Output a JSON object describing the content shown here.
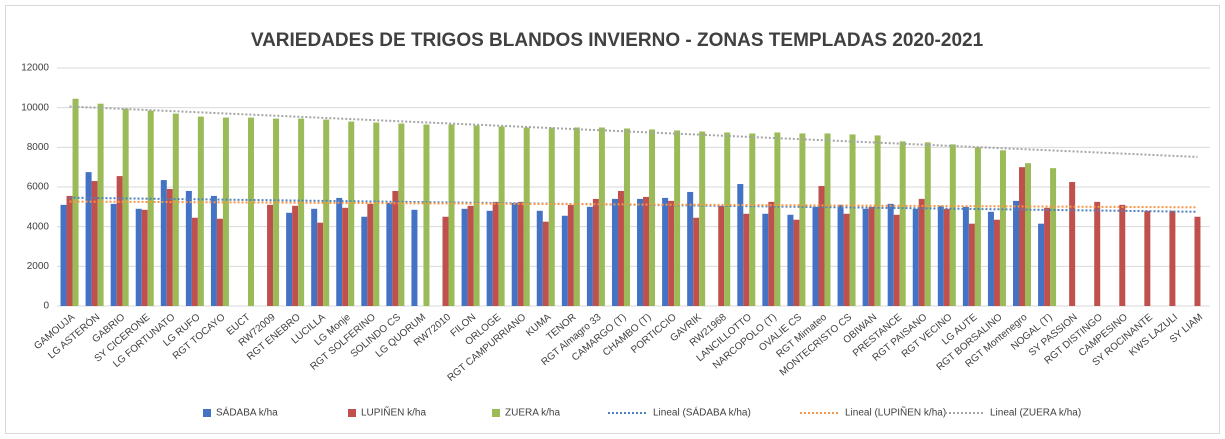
{
  "chart_data": {
    "type": "bar",
    "title": "VARIEDADES DE TRIGOS BLANDOS INVIERNO - ZONAS TEMPLADAS 2020-2021",
    "categories": [
      "GAMOUJA",
      "LG ASTERÓN",
      "GABRIO",
      "SY CICERONE",
      "LG FORTUNATO",
      "LG RUFO",
      "RGT TOCAYO",
      "EUCT",
      "RW72009",
      "RGT ENEBRO",
      "LUCILLA",
      "LG Monje",
      "RGT SOLFERINO",
      "SOLINDO CS",
      "LG QUORUM",
      "RW72010",
      "FILON",
      "ORLOGE",
      "RGT CAMPURRIANO",
      "KUMA",
      "TENOR",
      "RGT Almagro 33",
      "CAMARGO (T)",
      "CHAMBO (T)",
      "PORTICCIO",
      "GAVRIK",
      "RW21968",
      "LANCILLOTTO",
      "NARCOPOLO (T)",
      "OVALIE CS",
      "RGT Mimateo",
      "MONTECRISTO CS",
      "OBIWAN",
      "PRESTANCE",
      "RGT PAISANO",
      "RGT VECINO",
      "LG AUTE",
      "RGT BORSALINO",
      "RGT Montenegro",
      "NOGAL (T)",
      "SY PASSION",
      "RGT DISTINGO",
      "CAMPESINO",
      "SY ROCINANTE",
      "KWS LAZULI",
      "SY LIAM"
    ],
    "series": [
      {
        "name": "SÁDABA k/ha",
        "color": "#4472c4",
        "values": [
          5100,
          6750,
          5150,
          4900,
          6350,
          5800,
          5550,
          null,
          null,
          4700,
          4900,
          5450,
          4500,
          5200,
          4850,
          null,
          4900,
          4800,
          5200,
          4800,
          4550,
          5000,
          5400,
          5400,
          5450,
          5750,
          null,
          6150,
          4650,
          4600,
          5000,
          5100,
          4900,
          5150,
          4900,
          5050,
          5000,
          4750,
          5300,
          4150,
          null,
          null,
          null,
          null,
          null,
          null
        ]
      },
      {
        "name": "LUPIÑEN k/ha",
        "color": "#c0504d",
        "values": [
          5550,
          6300,
          6550,
          4850,
          5900,
          4450,
          4400,
          null,
          5100,
          5050,
          4200,
          4950,
          5150,
          5800,
          null,
          4500,
          5050,
          5250,
          5250,
          4250,
          5100,
          5400,
          5800,
          5500,
          5300,
          4450,
          5050,
          4650,
          5250,
          4350,
          6050,
          4650,
          5000,
          4600,
          5400,
          4900,
          4150,
          4350,
          7000,
          4950,
          6250,
          5250,
          5100,
          4800,
          4800,
          4500
        ]
      },
      {
        "name": "ZUERA k/ha",
        "color": "#9bbb59",
        "values": [
          10450,
          10200,
          9950,
          9850,
          9700,
          9550,
          9500,
          9500,
          9450,
          9450,
          9400,
          9300,
          9250,
          9200,
          9150,
          9150,
          9100,
          9050,
          9000,
          9000,
          9000,
          9000,
          8950,
          8900,
          8850,
          8800,
          8750,
          8700,
          8750,
          8700,
          8700,
          8650,
          8600,
          8300,
          8250,
          8150,
          8000,
          7850,
          7200,
          6950,
          null,
          null,
          null,
          null,
          null,
          null
        ]
      }
    ],
    "trendlines": [
      {
        "name": "Lineal (SÁDABA k/ha)",
        "series": 0,
        "color": "#4f81bd"
      },
      {
        "name": "Lineal (LUPIÑEN k/ha)",
        "series": 1,
        "color": "#f79646"
      },
      {
        "name": "Lineal (ZUERA k/ha)",
        "series": 2,
        "color": "#a5a5a5"
      }
    ],
    "ylim": [
      0,
      12000
    ],
    "yticks": [
      0,
      2000,
      4000,
      6000,
      8000,
      10000,
      12000
    ],
    "grid": true
  }
}
